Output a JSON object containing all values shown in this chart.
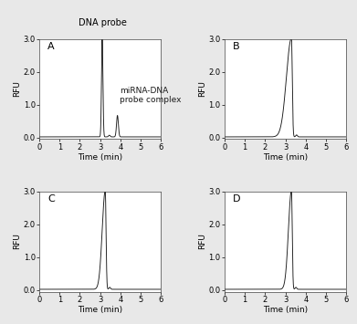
{
  "title_A": "A",
  "title_B": "B",
  "title_C": "C",
  "title_D": "D",
  "xlabel": "Time (min)",
  "ylabel": "RFU",
  "xlim": [
    0,
    6
  ],
  "ylim": [
    -0.05,
    3.0
  ],
  "yticks": [
    0.0,
    1.0,
    2.0,
    3.0
  ],
  "ytick_labels": [
    "0.0",
    "1.0",
    "2.0",
    "3.0"
  ],
  "xticks": [
    0,
    1,
    2,
    3,
    4,
    5,
    6
  ],
  "background_color": "#ffffff",
  "fig_background_color": "#e8e8e8",
  "line_color": "#1a1a1a",
  "annotation_dna_probe": "DNA probe",
  "annotation_complex": "miRNA-DNA\nprobe complex",
  "panel_label_fontsize": 8,
  "axis_label_fontsize": 6.5,
  "tick_fontsize": 6,
  "annotation_fontsize": 7,
  "complex_annotation_fontsize": 6.5
}
